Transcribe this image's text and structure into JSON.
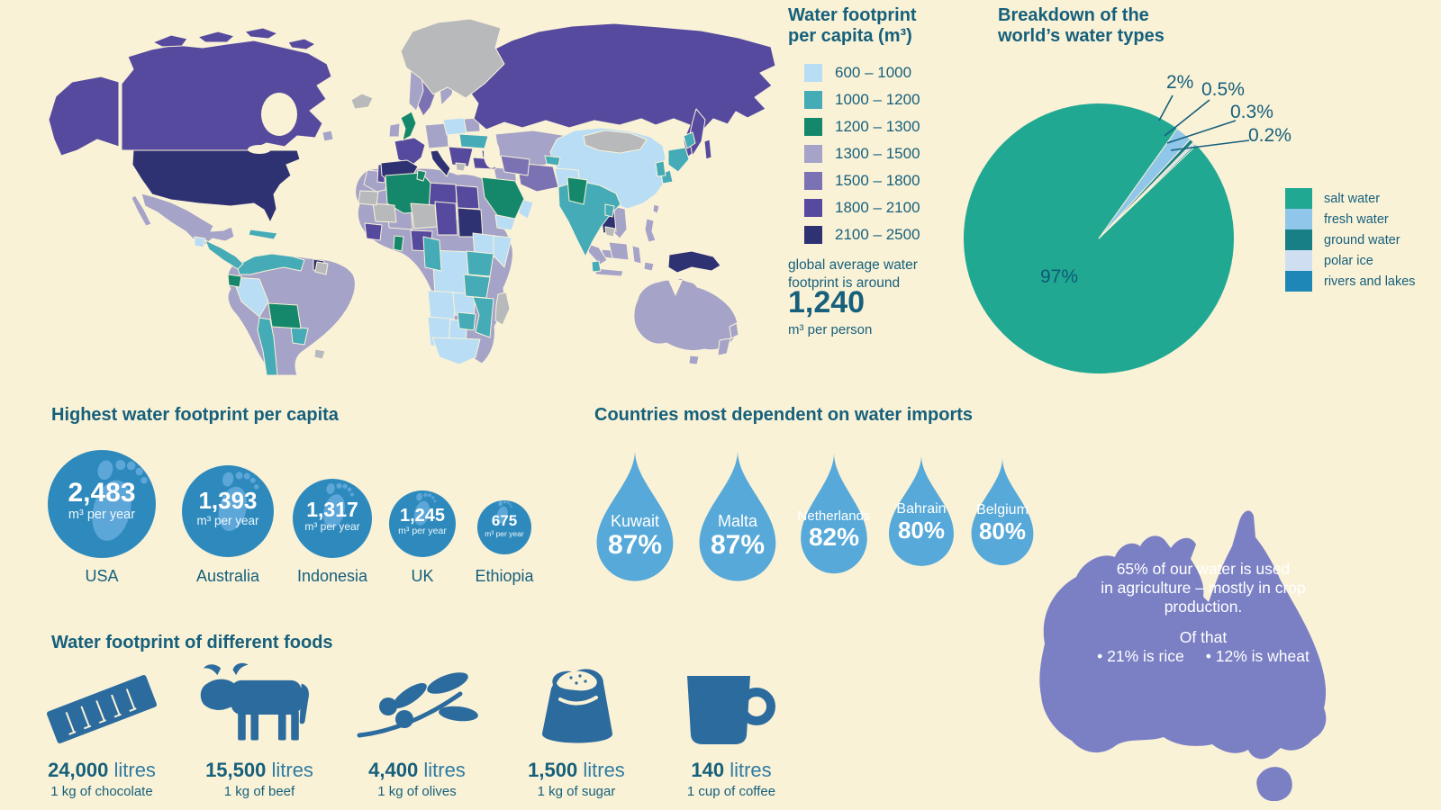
{
  "colors": {
    "background": "#faf2d7",
    "text": "#16607c",
    "map_no_data": "#b7b9bb",
    "footprint_circle": "#2e8abd",
    "footprint_glyph": "#5ca6d8",
    "water_drop": "#56a9d8",
    "food_icon": "#2b6b9e",
    "australia_shape": "#7b80c4"
  },
  "map_legend": {
    "title_line1": "Water footprint",
    "title_line2": "per capita (m³)",
    "bins": [
      {
        "range": "600 – 1000",
        "color": "#b8ddf5"
      },
      {
        "range": "1000 – 1200",
        "color": "#44abb7"
      },
      {
        "range": "1200 – 1300",
        "color": "#15886c"
      },
      {
        "range": "1300 – 1500",
        "color": "#a5a3c7"
      },
      {
        "range": "1500 – 1800",
        "color": "#7b72b3"
      },
      {
        "range": "1800 – 2100",
        "color": "#564a9e"
      },
      {
        "range": "2100 – 2500",
        "color": "#2e3273"
      }
    ],
    "note_line1": "global average water",
    "note_line2": "footprint is around",
    "average_value": "1,240",
    "average_unit": "m³ per person"
  },
  "pie": {
    "title_line1": "Breakdown of the",
    "title_line2": "world’s water types",
    "slices": [
      {
        "label": "salt water",
        "pct_label": "97%",
        "value": 97,
        "color": "#21a893"
      },
      {
        "label": "fresh water",
        "pct_label": "2%",
        "value": 2,
        "color": "#8fc6ea"
      },
      {
        "label": "ground water",
        "pct_label": "0.5%",
        "value": 0.5,
        "color": "#197f86"
      },
      {
        "label": "polar ice",
        "pct_label": "0.3%",
        "value": 0.3,
        "color": "#cfdff1"
      },
      {
        "label": "rivers and lakes",
        "pct_label": "0.2%",
        "value": 0.2,
        "color": "#1e87b7"
      }
    ]
  },
  "footprints": {
    "title": "Highest water footprint per capita",
    "items": [
      {
        "country": "USA",
        "value": "2,483",
        "unit": "m³ per year"
      },
      {
        "country": "Australia",
        "value": "1,393",
        "unit": "m³ per year"
      },
      {
        "country": "Indonesia",
        "value": "1,317",
        "unit": "m³ per year"
      },
      {
        "country": "UK",
        "value": "1,245",
        "unit": "m³ per year"
      },
      {
        "country": "Ethiopia",
        "value": "675",
        "unit": "m³ per year"
      }
    ]
  },
  "imports": {
    "title": "Countries most dependent on water imports",
    "items": [
      {
        "country": "Kuwait",
        "percent": "87%"
      },
      {
        "country": "Malta",
        "percent": "87%"
      },
      {
        "country": "Netherlands",
        "percent": "82%"
      },
      {
        "country": "Bahrain",
        "percent": "80%"
      },
      {
        "country": "Belgium",
        "percent": "80%"
      }
    ]
  },
  "australia": {
    "fact_line1": "65% of our water is used",
    "fact_line2": "in agriculture – mostly in crop",
    "fact_line3": "production.",
    "of_that": "Of that",
    "bullet_rice": "• 21% is rice",
    "bullet_wheat": "• 12% is wheat"
  },
  "foods": {
    "title": "Water footprint of different foods",
    "items": [
      {
        "icon": "chocolate-bar-icon",
        "value": "24,000",
        "unit": "litres",
        "caption": "1 kg of chocolate"
      },
      {
        "icon": "cow-icon",
        "value": "15,500",
        "unit": "litres",
        "caption": "1 kg of beef"
      },
      {
        "icon": "olive-branch-icon",
        "value": "4,400",
        "unit": "litres",
        "caption": "1 kg of olives"
      },
      {
        "icon": "sugar-bag-icon",
        "value": "1,500",
        "unit": "litres",
        "caption": "1 kg of sugar"
      },
      {
        "icon": "coffee-mug-icon",
        "value": "140",
        "unit": "litres",
        "caption": "1 cup of coffee"
      }
    ]
  },
  "chart_data": [
    {
      "type": "choropleth",
      "title": "Water footprint per capita (m³)",
      "legend_bins": [
        {
          "range": "600 – 1000",
          "color": "#b8ddf5"
        },
        {
          "range": "1000 – 1200",
          "color": "#44abb7"
        },
        {
          "range": "1200 – 1300",
          "color": "#15886c"
        },
        {
          "range": "1300 – 1500",
          "color": "#a5a3c7"
        },
        {
          "range": "1500 – 1800",
          "color": "#7b72b3"
        },
        {
          "range": "1800 – 2100",
          "color": "#564a9e"
        },
        {
          "range": "2100 – 2500",
          "color": "#2e3273"
        }
      ],
      "annotation": "global average water footprint is around 1,240 m³ per person"
    },
    {
      "type": "pie",
      "title": "Breakdown of the world’s water types",
      "labels": [
        "salt water",
        "fresh water",
        "ground water",
        "polar ice",
        "rivers and lakes"
      ],
      "values": [
        97,
        2,
        0.5,
        0.3,
        0.2
      ],
      "colors": [
        "#21a893",
        "#8fc6ea",
        "#197f86",
        "#cfdff1",
        "#1e87b7"
      ],
      "legend_position": "right",
      "start_angle_deg": 54.5
    },
    {
      "type": "bar",
      "title": "Highest water footprint per capita",
      "categories": [
        "USA",
        "Australia",
        "Indonesia",
        "UK",
        "Ethiopia"
      ],
      "values": [
        2483,
        1393,
        1317,
        1245,
        675
      ],
      "ylabel": "m³ per year",
      "icon": "footprint"
    },
    {
      "type": "bar",
      "title": "Countries most dependent on water imports",
      "categories": [
        "Kuwait",
        "Malta",
        "Netherlands",
        "Bahrain",
        "Belgium"
      ],
      "values": [
        87,
        87,
        82,
        80,
        80
      ],
      "ylabel": "% dependent on water imports",
      "icon": "water-drop"
    },
    {
      "type": "bar",
      "title": "Water footprint of different foods",
      "categories": [
        "1 kg of chocolate",
        "1 kg of beef",
        "1 kg of olives",
        "1 kg of sugar",
        "1 cup of coffee"
      ],
      "values": [
        24000,
        15500,
        4400,
        1500,
        140
      ],
      "ylabel": "litres",
      "icons": [
        "chocolate-bar",
        "cow",
        "olive-branch",
        "sugar-bag",
        "coffee-mug"
      ]
    },
    {
      "type": "annotation",
      "region": "Australia",
      "text": "65% of our water is used in agriculture – mostly in crop production. Of that • 21% is rice • 12% is wheat"
    }
  ]
}
